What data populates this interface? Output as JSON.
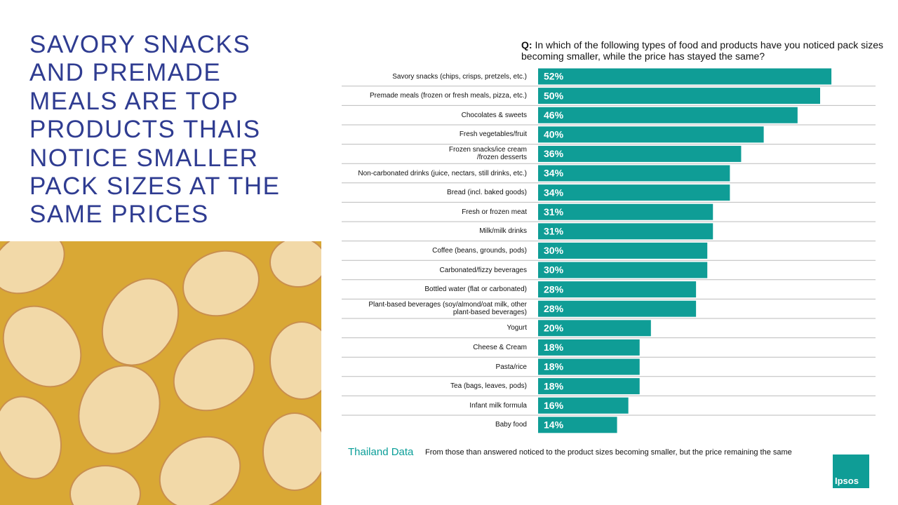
{
  "headline": "SAVORY SNACKS AND PREMADE MEALS ARE TOP PRODUCTS THAIS NOTICE SMALLER PACK SIZES AT THE SAME PRICES",
  "chart_data": {
    "type": "bar",
    "orientation": "horizontal",
    "question_label": "Q:",
    "question": "In which of the following types of food and products have you noticed pack sizes becoming smaller, while the price has stayed the same?",
    "categories": [
      "Savory snacks (chips, crisps, pretzels, etc.)",
      "Premade meals (frozen or fresh meals, pizza, etc.)",
      "Chocolates & sweets",
      "Fresh vegetables/fruit",
      "Frozen snacks/ice cream\n/frozen desserts",
      "Non-carbonated drinks (juice, nectars, still drinks, etc.)",
      "Bread (incl. baked goods)",
      "Fresh or frozen meat",
      "Milk/milk drinks",
      "Coffee (beans, grounds, pods)",
      "Carbonated/fizzy beverages",
      "Bottled water (flat or carbonated)",
      "Plant-based beverages (soy/almond/oat milk, other\nplant-based beverages)",
      "Yogurt",
      "Cheese & Cream",
      "Pasta/rice",
      "Tea (bags, leaves, pods)",
      "Infant milk formula",
      "Baby food"
    ],
    "values": [
      52,
      50,
      46,
      40,
      36,
      34,
      34,
      31,
      31,
      30,
      30,
      28,
      28,
      20,
      18,
      18,
      18,
      16,
      14
    ],
    "value_labels": [
      "52%",
      "50%",
      "46%",
      "40%",
      "36%",
      "34%",
      "34%",
      "31%",
      "31%",
      "30%",
      "30%",
      "28%",
      "28%",
      "20%",
      "18%",
      "18%",
      "18%",
      "16%",
      "14%"
    ],
    "color": "#0f9d96"
  },
  "footer": {
    "source": "Thailand Data",
    "note": "From those than answered noticed to the product sizes becoming smaller, but the price remaining the same"
  },
  "logo": "Ipsos"
}
